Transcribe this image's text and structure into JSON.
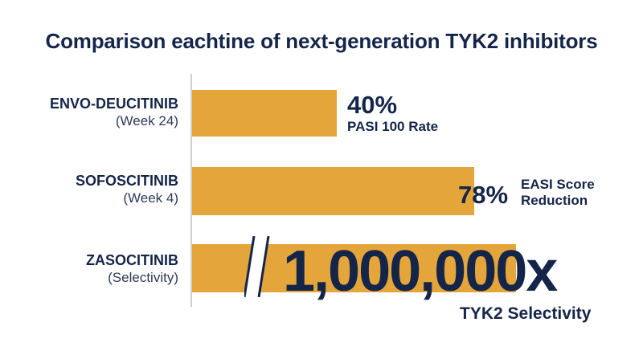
{
  "title": "Comparison eachtine of next-generation TYK2 inhibitors",
  "colors": {
    "bar": "#e4a53a",
    "text": "#15254a",
    "axis": "#cfcfcf"
  },
  "chart_data": {
    "type": "bar",
    "orientation": "horizontal",
    "title": "Comparison eachtine of next-generation TYK2 inhibitors",
    "categories": [
      {
        "name": "ENVO-DEUCITINIB",
        "sub": "(Week 24)"
      },
      {
        "name": "SOFOSCITINIB",
        "sub": "(Week 4)"
      },
      {
        "name": "ZASOCITINIB",
        "sub": "(Selectivity)"
      }
    ],
    "items": [
      {
        "value": 40,
        "value_label": "40%",
        "metric_label": "PASI 100 Rate",
        "unit": "%"
      },
      {
        "value": 78,
        "value_label": "78%",
        "metric_label": "EASI Score Reduction",
        "metric_lines": [
          "EASI Score",
          "Reduction"
        ],
        "unit": "%"
      },
      {
        "value": 1000000,
        "value_label": "1,000,000x",
        "metric_label": "TYK2 Selectivity",
        "unit": "x",
        "axis_break": true
      }
    ],
    "grid": false,
    "legend": "none"
  }
}
